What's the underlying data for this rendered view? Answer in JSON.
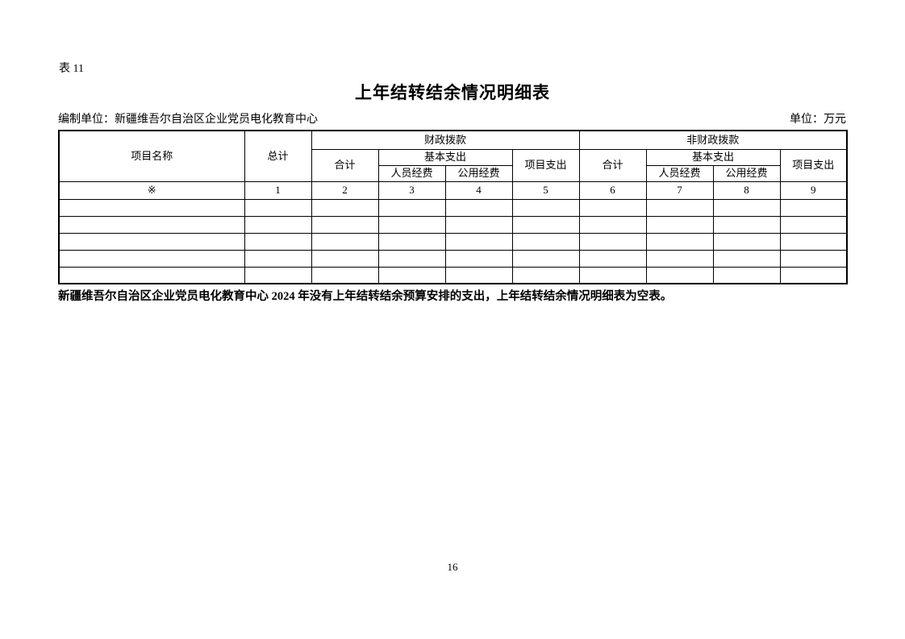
{
  "page": {
    "table_label": "表 11",
    "title": "上年结转结余情况明细表",
    "prepared_by": "编制单位：新疆维吾尔自治区企业党员电化教育中心",
    "unit_label": "单位：万元",
    "footnote": "新疆维吾尔自治区企业党员电化教育中心 2024 年没有上年结转结余预算安排的支出，上年结转结余情况明细表为空表。",
    "page_number": "16"
  },
  "table": {
    "headers": {
      "project_name": "项目名称",
      "grand_total": "总计",
      "fiscal_appropriation": "财政拨款",
      "non_fiscal_appropriation": "非财政拨款",
      "subtotal": "合计",
      "basic_expenditure": "基本支出",
      "personnel_funds": "人员经费",
      "public_funds": "公用经费",
      "project_expenditure": "项目支出"
    },
    "column_index_row": [
      "※",
      "1",
      "2",
      "3",
      "4",
      "5",
      "6",
      "7",
      "8",
      "9"
    ],
    "empty_row_count": 5,
    "columns_per_row": 10
  }
}
